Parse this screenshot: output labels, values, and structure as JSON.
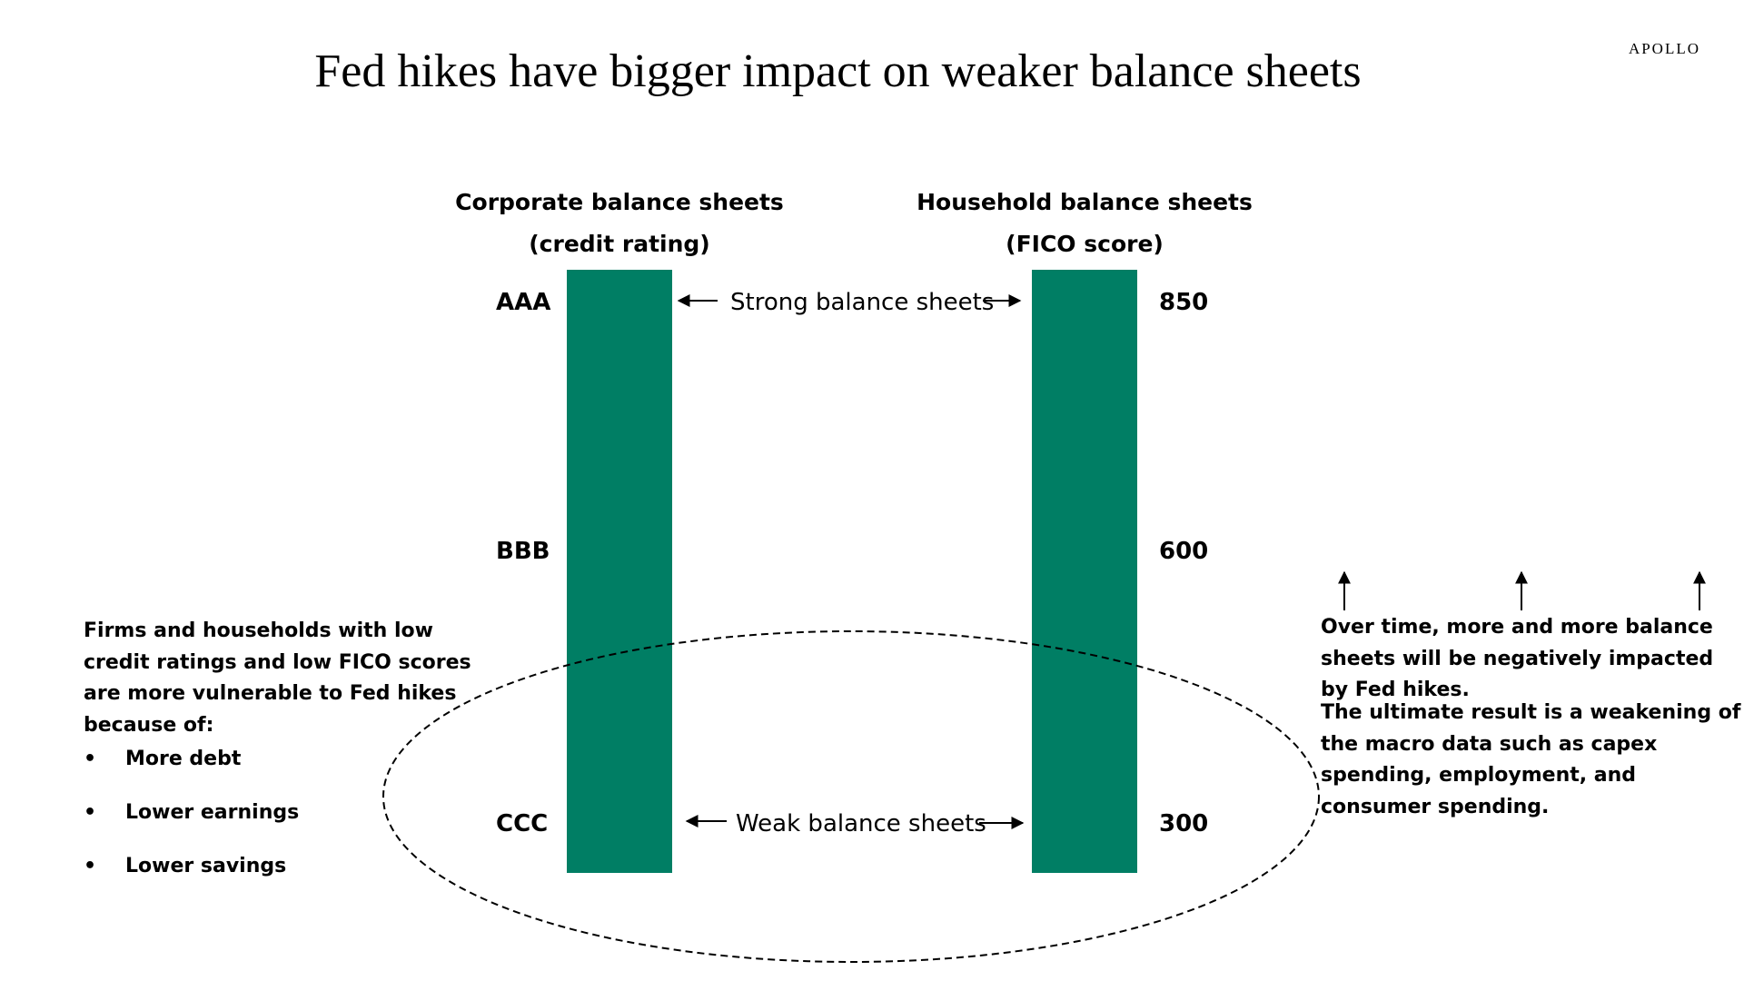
{
  "brand": "APOLLO",
  "title": "Fed hikes have bigger impact on weaker balance sheets",
  "corporate": {
    "heading_line1": "Corporate balance sheets",
    "heading_line2": "(credit rating)",
    "ticks": [
      "AAA",
      "BBB",
      "CCC"
    ]
  },
  "household": {
    "heading_line1": "Household balance sheets",
    "heading_line2": "(FICO score)",
    "ticks": [
      "850",
      "600",
      "300"
    ]
  },
  "strong_label": "Strong balance sheets",
  "weak_label": "Weak balance sheets",
  "left_note": {
    "text": "Firms and households with low credit ratings and low FICO scores are more vulnerable to Fed hikes because of:",
    "bullets": [
      "More debt",
      "Lower earnings",
      "Lower savings"
    ]
  },
  "right_note": {
    "paragraph1": "Over time, more and more balance sheets will be negatively impacted by Fed hikes.",
    "paragraph2": "The ultimate result is a weakening of the macro data such as capex spending, employment, and consumer spending."
  },
  "colors": {
    "bar": "#007e64",
    "text": "#000000"
  }
}
